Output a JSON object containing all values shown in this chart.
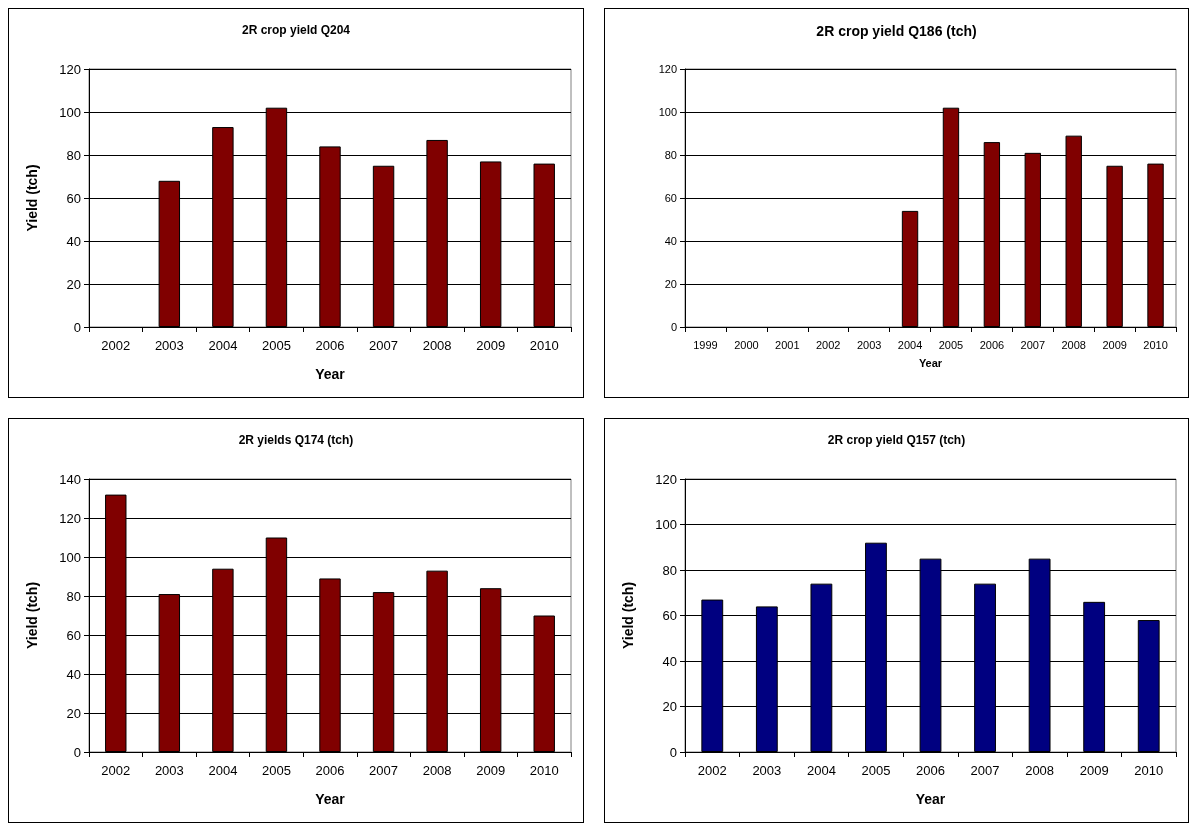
{
  "chart_data": [
    {
      "type": "bar",
      "title": "2R crop yield Q204",
      "xlabel": "Year",
      "ylabel": "Yield (tch)",
      "categories": [
        "2002",
        "2003",
        "2004",
        "2005",
        "2006",
        "2007",
        "2008",
        "2009",
        "2010"
      ],
      "values": [
        null,
        68,
        93,
        102,
        84,
        75,
        87,
        77,
        76
      ],
      "color": "#800000",
      "ylim": [
        0,
        120
      ],
      "yticks": [
        0,
        20,
        40,
        60,
        80,
        100,
        120
      ],
      "grid": "y"
    },
    {
      "type": "bar",
      "title": "2R crop yield Q186 (tch)",
      "xlabel": "Year",
      "categories": [
        "1999",
        "2000",
        "2001",
        "2002",
        "2003",
        "2004",
        "2005",
        "2006",
        "2007",
        "2008",
        "2009",
        "2010"
      ],
      "values": [
        null,
        null,
        null,
        null,
        null,
        54,
        102,
        86,
        81,
        89,
        75,
        76
      ],
      "color": "#800000",
      "ylim": [
        0,
        120
      ],
      "yticks": [
        0,
        20,
        40,
        60,
        80,
        100,
        120
      ],
      "grid": "y"
    },
    {
      "type": "bar",
      "title": "2R yields Q174 (tch)",
      "xlabel": "Year",
      "ylabel": "Yield (tch)",
      "categories": [
        "2002",
        "2003",
        "2004",
        "2005",
        "2006",
        "2007",
        "2008",
        "2009",
        "2010"
      ],
      "values": [
        132,
        81,
        94,
        110,
        89,
        82,
        93,
        84,
        70
      ],
      "color": "#800000",
      "ylim": [
        0,
        140
      ],
      "yticks": [
        0,
        20,
        40,
        60,
        80,
        100,
        120,
        140
      ],
      "grid": "y"
    },
    {
      "type": "bar",
      "title": "2R crop yield Q157 (tch)",
      "xlabel": "Year",
      "ylabel": "Yield (tch)",
      "categories": [
        "2002",
        "2003",
        "2004",
        "2005",
        "2006",
        "2007",
        "2008",
        "2009",
        "2010"
      ],
      "values": [
        67,
        64,
        74,
        92,
        85,
        74,
        85,
        66,
        58
      ],
      "color": "#000080",
      "ylim": [
        0,
        120
      ],
      "yticks": [
        0,
        20,
        40,
        60,
        80,
        100,
        120
      ],
      "grid": "y"
    }
  ]
}
